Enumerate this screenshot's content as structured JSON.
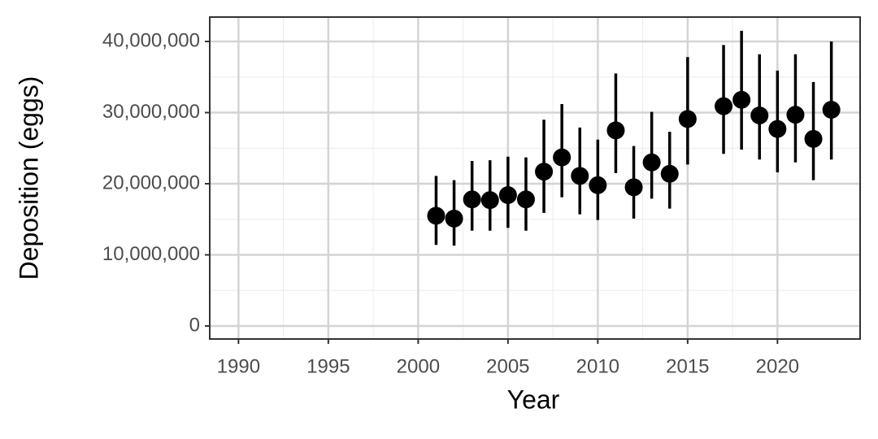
{
  "chart_data": {
    "type": "pointrange",
    "x_label": "Year",
    "y_label": "Deposition (eggs)",
    "x": [
      2001,
      2002,
      2003,
      2004,
      2005,
      2006,
      2007,
      2008,
      2009,
      2010,
      2011,
      2012,
      2013,
      2014,
      2015,
      2017,
      2018,
      2019,
      2020,
      2021,
      2022,
      2023
    ],
    "values": [
      15500000,
      15100000,
      17800000,
      17700000,
      18400000,
      17800000,
      21700000,
      23700000,
      21100000,
      19800000,
      27500000,
      19500000,
      23000000,
      21400000,
      29100000,
      30900000,
      31800000,
      29600000,
      27700000,
      29700000,
      26300000,
      30400000
    ],
    "lower": [
      11400000,
      11300000,
      13400000,
      13400000,
      13800000,
      13400000,
      15900000,
      18100000,
      15700000,
      14900000,
      21500000,
      15100000,
      17900000,
      16500000,
      22700000,
      24200000,
      24800000,
      23400000,
      21600000,
      23000000,
      20500000,
      23400000
    ],
    "upper": [
      21100000,
      20500000,
      23200000,
      23300000,
      23800000,
      23700000,
      29000000,
      31200000,
      27900000,
      26200000,
      35500000,
      25300000,
      30100000,
      27300000,
      37800000,
      39500000,
      41500000,
      38200000,
      35900000,
      38200000,
      34300000,
      40000000
    ],
    "color": "#000000",
    "xlim": [
      1988.4,
      2024.6
    ],
    "xticks": [
      1990,
      1995,
      2000,
      2005,
      2010,
      2015,
      2020
    ],
    "ylim": [
      -1830000,
      43430000
    ],
    "yticks": [
      0,
      {
        "value": 10000000,
        "label": "10,000,000"
      },
      {
        "value": 20000000,
        "label": "20,000,000"
      },
      {
        "value": 30000000,
        "label": "30,000,000"
      },
      {
        "value": 40000000,
        "label": "40,000,000"
      }
    ],
    "grid": true
  }
}
